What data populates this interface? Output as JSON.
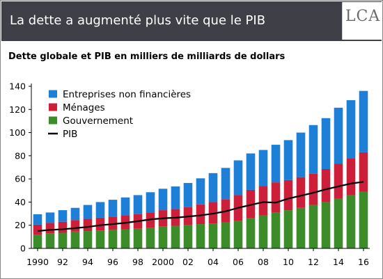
{
  "header": {
    "title": "La dette a augmenté plus vite que le PIB",
    "logo_text": "LCA"
  },
  "chart_data": {
    "type": "bar",
    "title": "Dette globale et PIB en milliers de milliards de dollars",
    "stacked": true,
    "xlabel": "",
    "ylabel": "",
    "ylim": [
      0,
      140
    ],
    "yticks": [
      0,
      20,
      40,
      60,
      80,
      100,
      120,
      140
    ],
    "x": [
      1990,
      1991,
      1992,
      1993,
      1994,
      1995,
      1996,
      1997,
      1998,
      1999,
      2000,
      2001,
      2002,
      2003,
      2004,
      2005,
      2006,
      2007,
      2008,
      2009,
      2010,
      2011,
      2012,
      2013,
      2014,
      2015,
      2016
    ],
    "x_tick_labels": [
      "1990",
      "92",
      "94",
      "96",
      "98",
      "2000",
      "02",
      "04",
      "06",
      "08",
      "10",
      "12",
      "14",
      "16"
    ],
    "x_tick_years": [
      1990,
      1992,
      1994,
      1996,
      1998,
      2000,
      2002,
      2004,
      2006,
      2008,
      2010,
      2012,
      2014,
      2016
    ],
    "legend_position": "top-left",
    "grid": false,
    "series": [
      {
        "name": "Gouvernement",
        "kind": "bar",
        "color": "#3c8c2a",
        "values": [
          12,
          13,
          13.5,
          14.5,
          15,
          15.5,
          16,
          16.5,
          17,
          18,
          19,
          19.5,
          20,
          21,
          21.5,
          22.5,
          24,
          26,
          28.5,
          31,
          33,
          35,
          37.5,
          40,
          43,
          46,
          49
        ]
      },
      {
        "name": "Ménages",
        "kind": "bar",
        "color": "#cc1f3a",
        "values": [
          8.5,
          9,
          9.5,
          10,
          10.5,
          11,
          11.5,
          12,
          12.5,
          13,
          14,
          14.5,
          15.5,
          17,
          18.5,
          20,
          22,
          24.5,
          25.5,
          26,
          26,
          26.5,
          27,
          28.5,
          30,
          32,
          34
        ]
      },
      {
        "name": "Entreprises non financières",
        "kind": "bar",
        "color": "#1e7fd6",
        "values": [
          9,
          9,
          10,
          10.5,
          12,
          13.5,
          14.5,
          15.5,
          16.5,
          17.5,
          18.5,
          19.5,
          21,
          22.5,
          25,
          27,
          30,
          31.5,
          31,
          32.5,
          34.5,
          38.5,
          42,
          44,
          48.5,
          50,
          53
        ]
      },
      {
        "name": "PIB",
        "kind": "line",
        "color": "#000000",
        "values": [
          15,
          16,
          16.5,
          17.5,
          18.5,
          20,
          21,
          22,
          23.5,
          25,
          26,
          26.5,
          27.5,
          28.5,
          30,
          32,
          35,
          37.5,
          40,
          39.5,
          43,
          45.5,
          48,
          51,
          53.5,
          56,
          57.5
        ]
      }
    ]
  }
}
